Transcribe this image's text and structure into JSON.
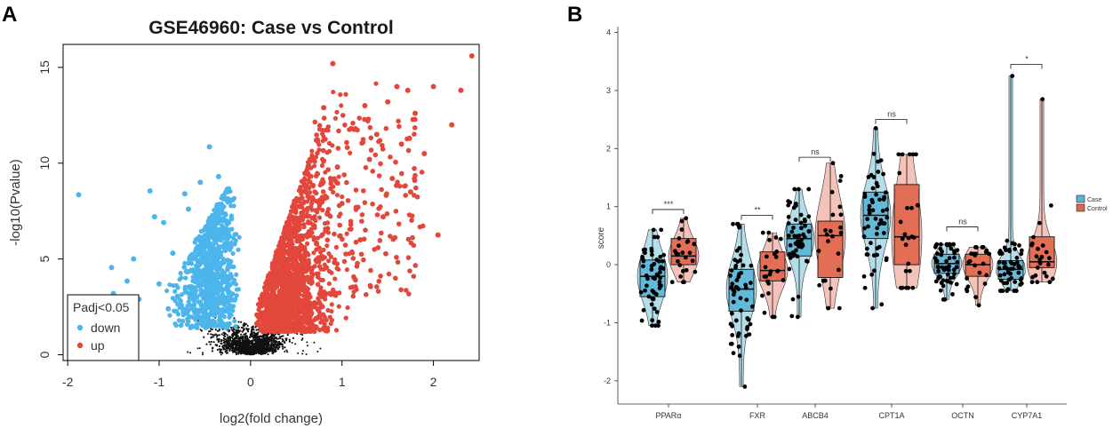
{
  "colors": {
    "down": "#4cb5ec",
    "up": "#e3473b",
    "ns": "#111111",
    "case_fill": "#5ab6d6",
    "control_fill": "#e0654b",
    "case_violin": "#a8d8e8",
    "control_violin": "#f3b7ad"
  },
  "chart_data": [
    {
      "panel_label": "A",
      "type": "scatter",
      "title": "GSE46960: Case vs Control",
      "xlabel": "log2(fold change)",
      "ylabel": "-log10(Pvalue)",
      "xlim": [
        -2.05,
        2.5
      ],
      "ylim": [
        -0.3,
        16.2
      ],
      "xticks": [
        "-2",
        "-1",
        "0",
        "1",
        "2"
      ],
      "xtick_values": [
        -2,
        -1,
        0,
        1,
        2
      ],
      "yticks": [
        "0",
        "5",
        "10",
        "15"
      ],
      "ytick_values": [
        0,
        5,
        10,
        15
      ],
      "legend": {
        "title": "Padj<0.05",
        "entries": [
          "down",
          "up"
        ]
      },
      "series": [
        {
          "name": "down",
          "points": [
            [
              -1.88,
              8.35
            ],
            [
              -1.52,
              4.55
            ],
            [
              -1.5,
              3.2
            ],
            [
              -1.35,
              3.85
            ],
            [
              -1.1,
              8.55
            ],
            [
              -1.05,
              7.2
            ],
            [
              -0.85,
              5.3
            ],
            [
              -0.72,
              8.4
            ],
            [
              -0.8,
              3.05
            ],
            [
              -0.6,
              3.8
            ],
            [
              -0.45,
              10.85
            ],
            [
              -0.35,
              9.3
            ],
            [
              -0.9,
              2.4
            ],
            [
              -1.0,
              3.7
            ],
            [
              -1.22,
              2.9
            ],
            [
              -1.28,
              5.0
            ],
            [
              -0.95,
              6.9
            ],
            [
              -0.68,
              7.6
            ],
            [
              -0.55,
              9.0
            ]
          ]
        },
        {
          "name": "up",
          "points": [
            [
              2.42,
              15.6
            ],
            [
              0.9,
              15.2
            ],
            [
              2.0,
              14.0
            ],
            [
              2.3,
              13.8
            ],
            [
              1.6,
              14.0
            ],
            [
              1.72,
              13.8
            ],
            [
              2.2,
              12.0
            ],
            [
              1.5,
              13.2
            ],
            [
              1.25,
              13.0
            ],
            [
              1.9,
              10.5
            ],
            [
              1.75,
              8.5
            ],
            [
              2.05,
              6.25
            ],
            [
              1.3,
              10.2
            ],
            [
              1.1,
              11.8
            ],
            [
              0.8,
              12.9
            ],
            [
              1.45,
              7.2
            ],
            [
              1.2,
              6.0
            ],
            [
              0.95,
              9.8
            ],
            [
              1.55,
              9.2
            ],
            [
              1.65,
              11.0
            ],
            [
              0.72,
              11.2
            ],
            [
              1.0,
              7.9
            ],
            [
              1.8,
              12.6
            ],
            [
              1.38,
              11.5
            ]
          ]
        },
        {
          "name": "ns",
          "points": []
        }
      ]
    },
    {
      "panel_label": "B",
      "type": "box",
      "xlabel": "",
      "ylabel": "score",
      "ylim": [
        -2.4,
        4.1
      ],
      "yticks": [
        "-2",
        "-1",
        "0",
        "1",
        "2",
        "3",
        "4"
      ],
      "ytick_values": [
        -2,
        -1,
        0,
        1,
        2,
        3,
        4
      ],
      "categories": [
        "PPARα",
        "FXR",
        "ABCB4",
        "CPT1A",
        "OCTN",
        "CYP7A1"
      ],
      "significance": [
        "***",
        "**",
        "ns",
        "ns",
        "ns",
        "*"
      ],
      "bracket_y": [
        0.95,
        0.85,
        1.85,
        2.5,
        0.65,
        3.45
      ],
      "legend": {
        "entries": [
          "Case",
          "Control"
        ]
      },
      "series": [
        {
          "name": "Case",
          "stats": [
            {
              "min": -1.05,
              "q1": -0.55,
              "median": -0.2,
              "q3": 0.08,
              "max": 0.6
            },
            {
              "min": -2.1,
              "q1": -0.8,
              "median": -0.42,
              "q3": -0.08,
              "max": 0.7
            },
            {
              "min": -0.9,
              "q1": 0.15,
              "median": 0.45,
              "q3": 0.7,
              "max": 1.3
            },
            {
              "min": -0.75,
              "q1": 0.45,
              "median": 0.85,
              "q3": 1.25,
              "max": 2.35
            },
            {
              "min": -0.6,
              "q1": -0.15,
              "median": 0.02,
              "q3": 0.18,
              "max": 0.35
            },
            {
              "min": -0.45,
              "q1": -0.25,
              "median": -0.08,
              "q3": 0.07,
              "max": 3.25
            }
          ]
        },
        {
          "name": "Control",
          "stats": [
            {
              "min": -0.3,
              "q1": 0.0,
              "median": 0.15,
              "q3": 0.45,
              "max": 0.8
            },
            {
              "min": -0.9,
              "q1": -0.28,
              "median": -0.1,
              "q3": 0.22,
              "max": 0.55
            },
            {
              "min": -0.75,
              "q1": -0.22,
              "median": 0.5,
              "q3": 0.75,
              "max": 1.75
            },
            {
              "min": -0.4,
              "q1": 0.0,
              "median": 0.48,
              "q3": 1.38,
              "max": 1.9
            },
            {
              "min": -0.7,
              "q1": -0.2,
              "median": 0.0,
              "q3": 0.18,
              "max": 0.3
            },
            {
              "min": -0.3,
              "q1": -0.05,
              "median": 0.05,
              "q3": 0.48,
              "max": 2.85
            }
          ]
        }
      ]
    }
  ]
}
